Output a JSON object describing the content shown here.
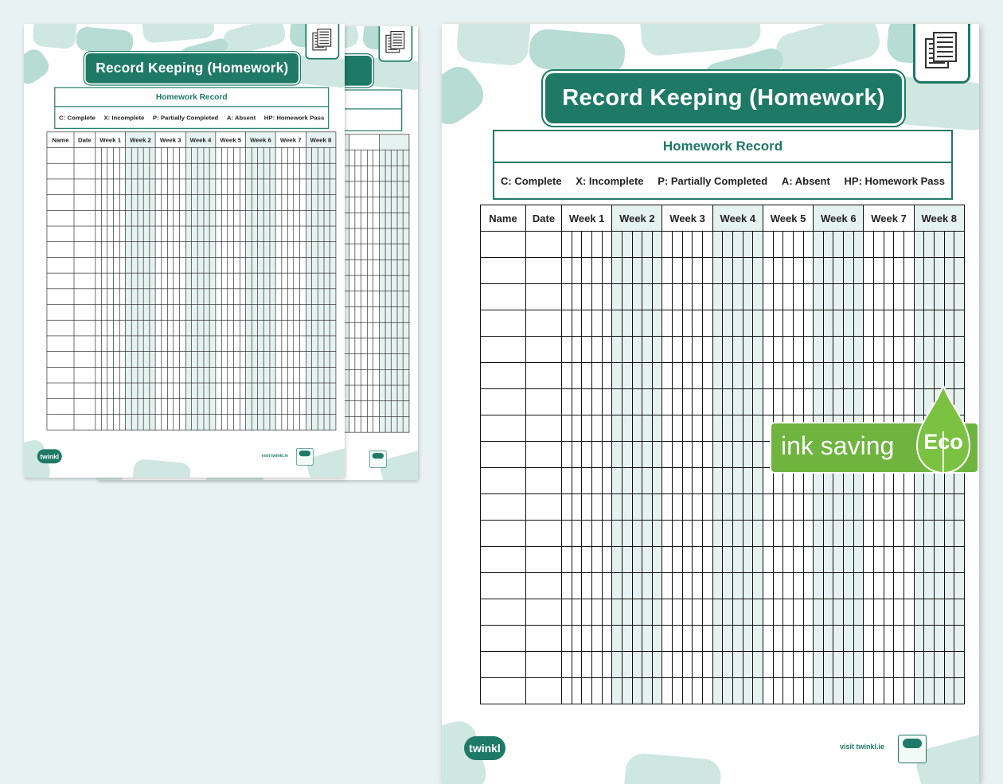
{
  "worksheet": {
    "title": "Record Keeping (Homework)",
    "record_heading": "Homework Record",
    "legend": [
      "C: Complete",
      "X: Incomplete",
      "P: Partially Completed",
      "A: Absent",
      "HP: Homework Pass"
    ],
    "columns": [
      "Name",
      "Date",
      "Week 1",
      "Week 2",
      "Week 3",
      "Week 4",
      "Week 5",
      "Week 6",
      "Week 7",
      "Week 8"
    ],
    "body_rows": 18,
    "footer_logo": "twinkl",
    "footer_link": "visit twinkl.ie"
  },
  "badge": {
    "label": "ink saving",
    "eco": "Eco",
    "color": "#6eb43f"
  },
  "colors": {
    "accent": "#1e7a66",
    "shade": "#e6f2ef"
  }
}
